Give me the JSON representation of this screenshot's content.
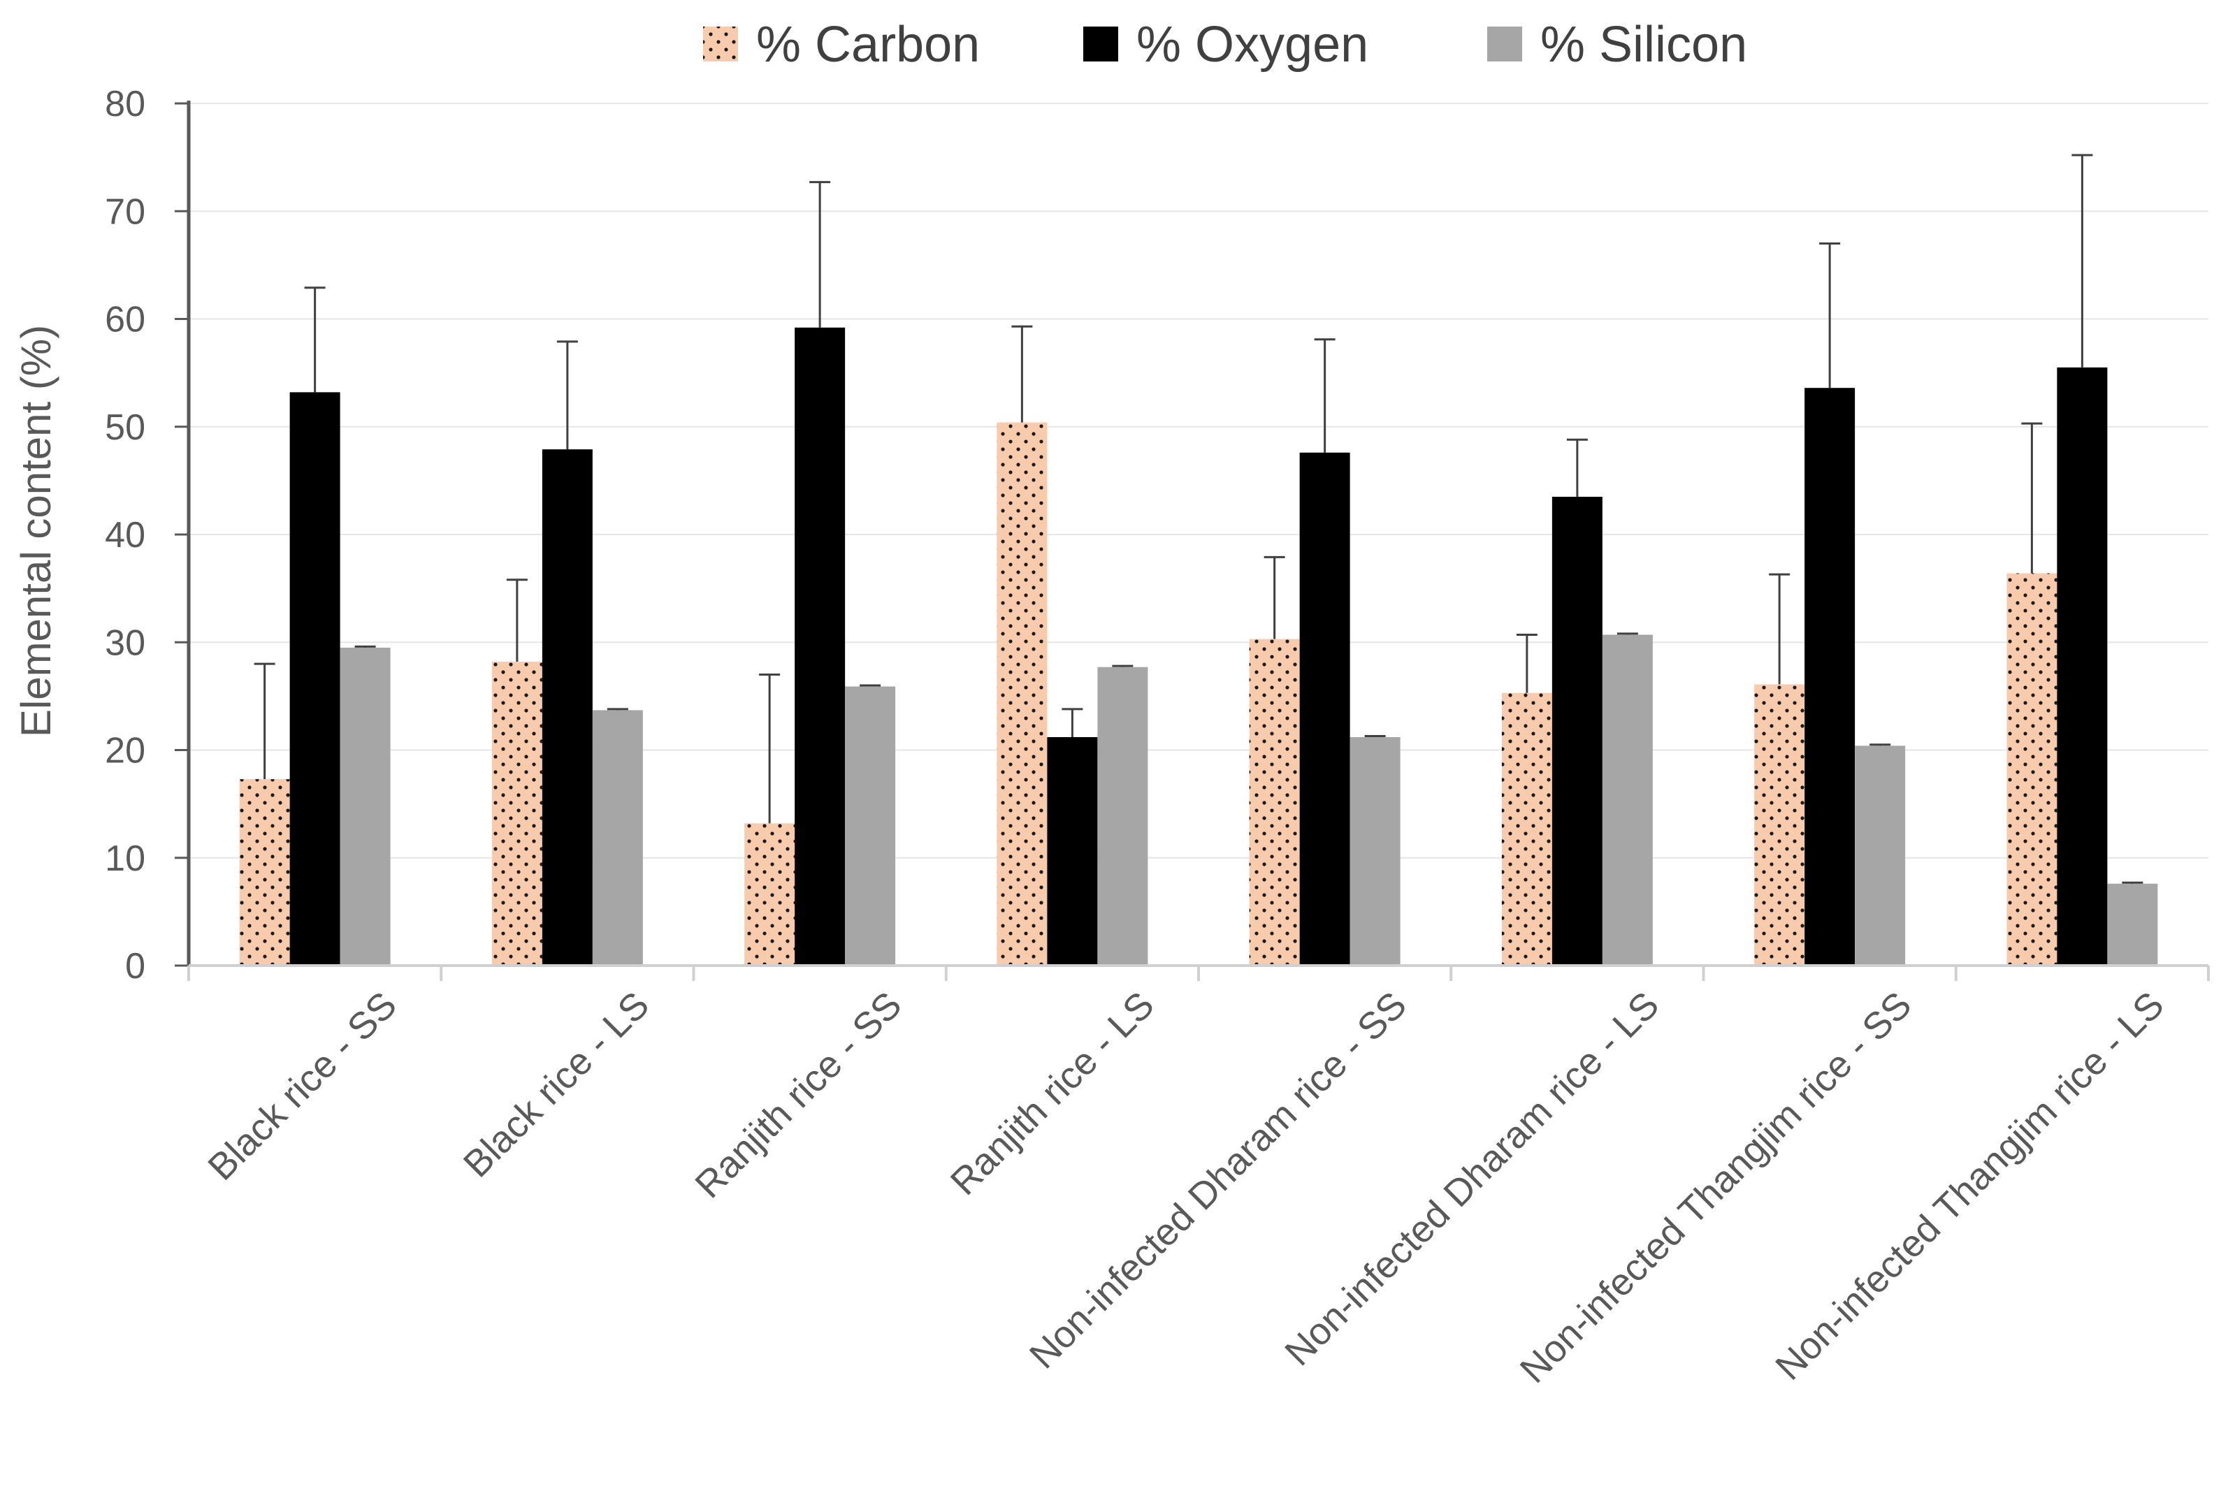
{
  "chart_data": {
    "type": "bar",
    "title": "",
    "xlabel": "",
    "ylabel": "Elemental content (%)",
    "ylim": [
      0,
      80
    ],
    "yticks": [
      0,
      10,
      20,
      30,
      40,
      50,
      60,
      70,
      80
    ],
    "grid": true,
    "legend_position": "top",
    "categories": [
      "Black rice - SS",
      "Black rice - LS",
      "Ranjith rice - SS",
      "Ranjith rice - LS",
      "Non-infected Dharam rice - SS",
      "Non-infected Dharam rice - LS",
      "Non-infected Thangjim rice - SS",
      "Non-infected Thangjim rice - LS"
    ],
    "series": [
      {
        "name": "% Carbon",
        "color": "#f8cbad",
        "pattern": "dots",
        "values": [
          17.3,
          28.2,
          13.2,
          50.4,
          30.3,
          25.3,
          26.1,
          36.4
        ],
        "error_upper": [
          28.0,
          35.8,
          27.0,
          59.3,
          37.9,
          30.7,
          36.3,
          50.3
        ]
      },
      {
        "name": "% Oxygen",
        "color": "#000000",
        "pattern": "solid",
        "values": [
          53.2,
          47.9,
          59.2,
          21.2,
          47.6,
          43.5,
          53.6,
          55.5
        ],
        "error_upper": [
          62.9,
          57.9,
          72.7,
          23.8,
          58.1,
          48.8,
          67.0,
          75.2
        ]
      },
      {
        "name": "% Silicon",
        "color": "#a6a6a6",
        "pattern": "solid",
        "values": [
          29.5,
          23.7,
          25.9,
          27.7,
          21.2,
          30.7,
          20.4,
          7.6
        ],
        "error_upper": [
          29.6,
          23.8,
          26.0,
          27.8,
          21.3,
          30.8,
          20.5,
          7.7
        ]
      }
    ]
  }
}
